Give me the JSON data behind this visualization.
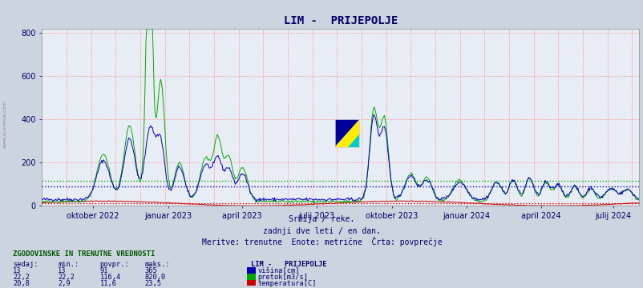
{
  "title": "LIM -  PRIJEPOLJE",
  "bg_color": "#ccd4e0",
  "plot_bg_color": "#e8edf5",
  "grid_color_major": "#ff8888",
  "line_blue_color": "#0000bb",
  "line_green_color": "#00aa00",
  "line_red_color": "#cc0000",
  "avg_blue": 91,
  "avg_green": 116.4,
  "avg_red": 11.6,
  "ylim": [
    0,
    820
  ],
  "yticks": [
    0,
    200,
    400,
    600,
    800
  ],
  "title_color": "#000066",
  "subtitle1": "Srbija / reke.",
  "subtitle2": "zadnji dve leti / en dan.",
  "subtitle3": "Meritve: trenutne  Enote: metrične  Črta: povprečje",
  "table_header": "ZGODOVINSKE IN TRENUTNE VREDNOSTI",
  "col_headers": [
    "sedaj:",
    "min.:",
    "povpr.:",
    "maks.:",
    "LIM -   PRIJEPOLJE"
  ],
  "row1": [
    "13",
    "13",
    "91",
    "365",
    "višina[cm]"
  ],
  "row2": [
    "22,2",
    "22,2",
    "116,4",
    "820,0",
    "pretok[m3/s]"
  ],
  "row3": [
    "20,8",
    "2,9",
    "11,6",
    "23,5",
    "temperatura[C]"
  ],
  "xtick_labels": [
    "oktober 2022",
    "januar 2023",
    "april 2023",
    "julij 2023",
    "oktober 2023",
    "januar 2024",
    "april 2024",
    "julij 2024"
  ],
  "tick_positions": [
    62,
    154,
    244,
    335,
    427,
    518,
    609,
    697
  ],
  "n_points": 730
}
